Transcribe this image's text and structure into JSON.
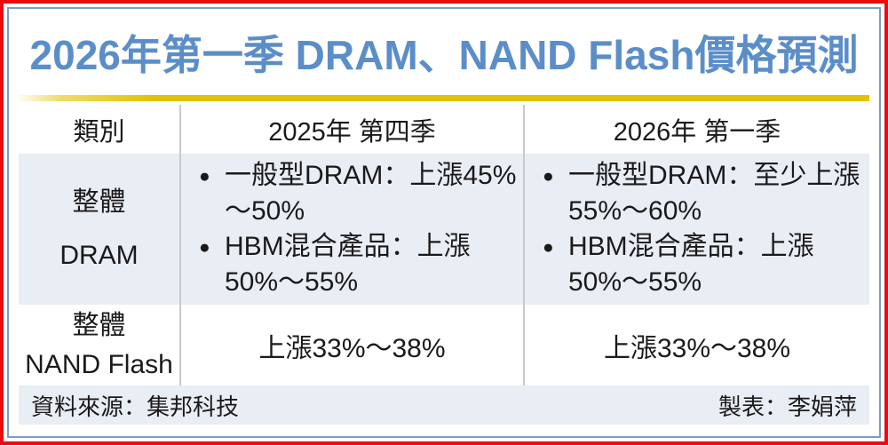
{
  "title": "2026年第一季 DRAM、NAND Flash價格預測",
  "colors": {
    "frame_red": "#ea0b10",
    "frame_blue": "#7e9dc1",
    "title_blue": "#5b8ec8",
    "gold_rule": "#e2c103",
    "row_shade": "#e9edf4",
    "divider_gray": "#c9c9c9"
  },
  "table": {
    "bullet_char": "●",
    "header": {
      "category": "類別",
      "q4_2025": "2025年 第四季",
      "q1_2026": "2026年 第一季"
    },
    "dram": {
      "category_line1": "整體",
      "category_line2": "DRAM",
      "q4_2025": {
        "item1_line1": "一般型DRAM：上漲45%",
        "item1_line2": "～50%",
        "item2_line1": "HBM混合產品：上漲",
        "item2_line2": "50%～55%"
      },
      "q1_2026": {
        "item1_line1": "一般型DRAM：至少上漲",
        "item1_line2": "55%～60%",
        "item2_line1": "HBM混合產品：上漲",
        "item2_line2": "50%～55%"
      }
    },
    "nand": {
      "category_line1": "整體",
      "category_line2": "NAND Flash",
      "q4_2025": "上漲33%～38%",
      "q1_2026": "上漲33%～38%"
    }
  },
  "footer": {
    "source": "資料來源：集邦科技",
    "credit": "製表：李娟萍"
  },
  "chart_data": {
    "type": "table",
    "title": "2026年第一季 DRAM、NAND Flash價格預測",
    "columns": [
      "類別",
      "2025年 第四季",
      "2026年 第一季"
    ],
    "rows": [
      [
        "整體DRAM",
        "一般型DRAM：上漲45%～50%；HBM混合產品：上漲50%～55%",
        "一般型DRAM：至少上漲55%～60%；HBM混合產品：上漲50%～55%"
      ],
      [
        "整體NAND Flash",
        "上漲33%～38%",
        "上漲33%～38%"
      ]
    ],
    "source": "資料來源：集邦科技",
    "credit": "製表：李娟萍"
  }
}
